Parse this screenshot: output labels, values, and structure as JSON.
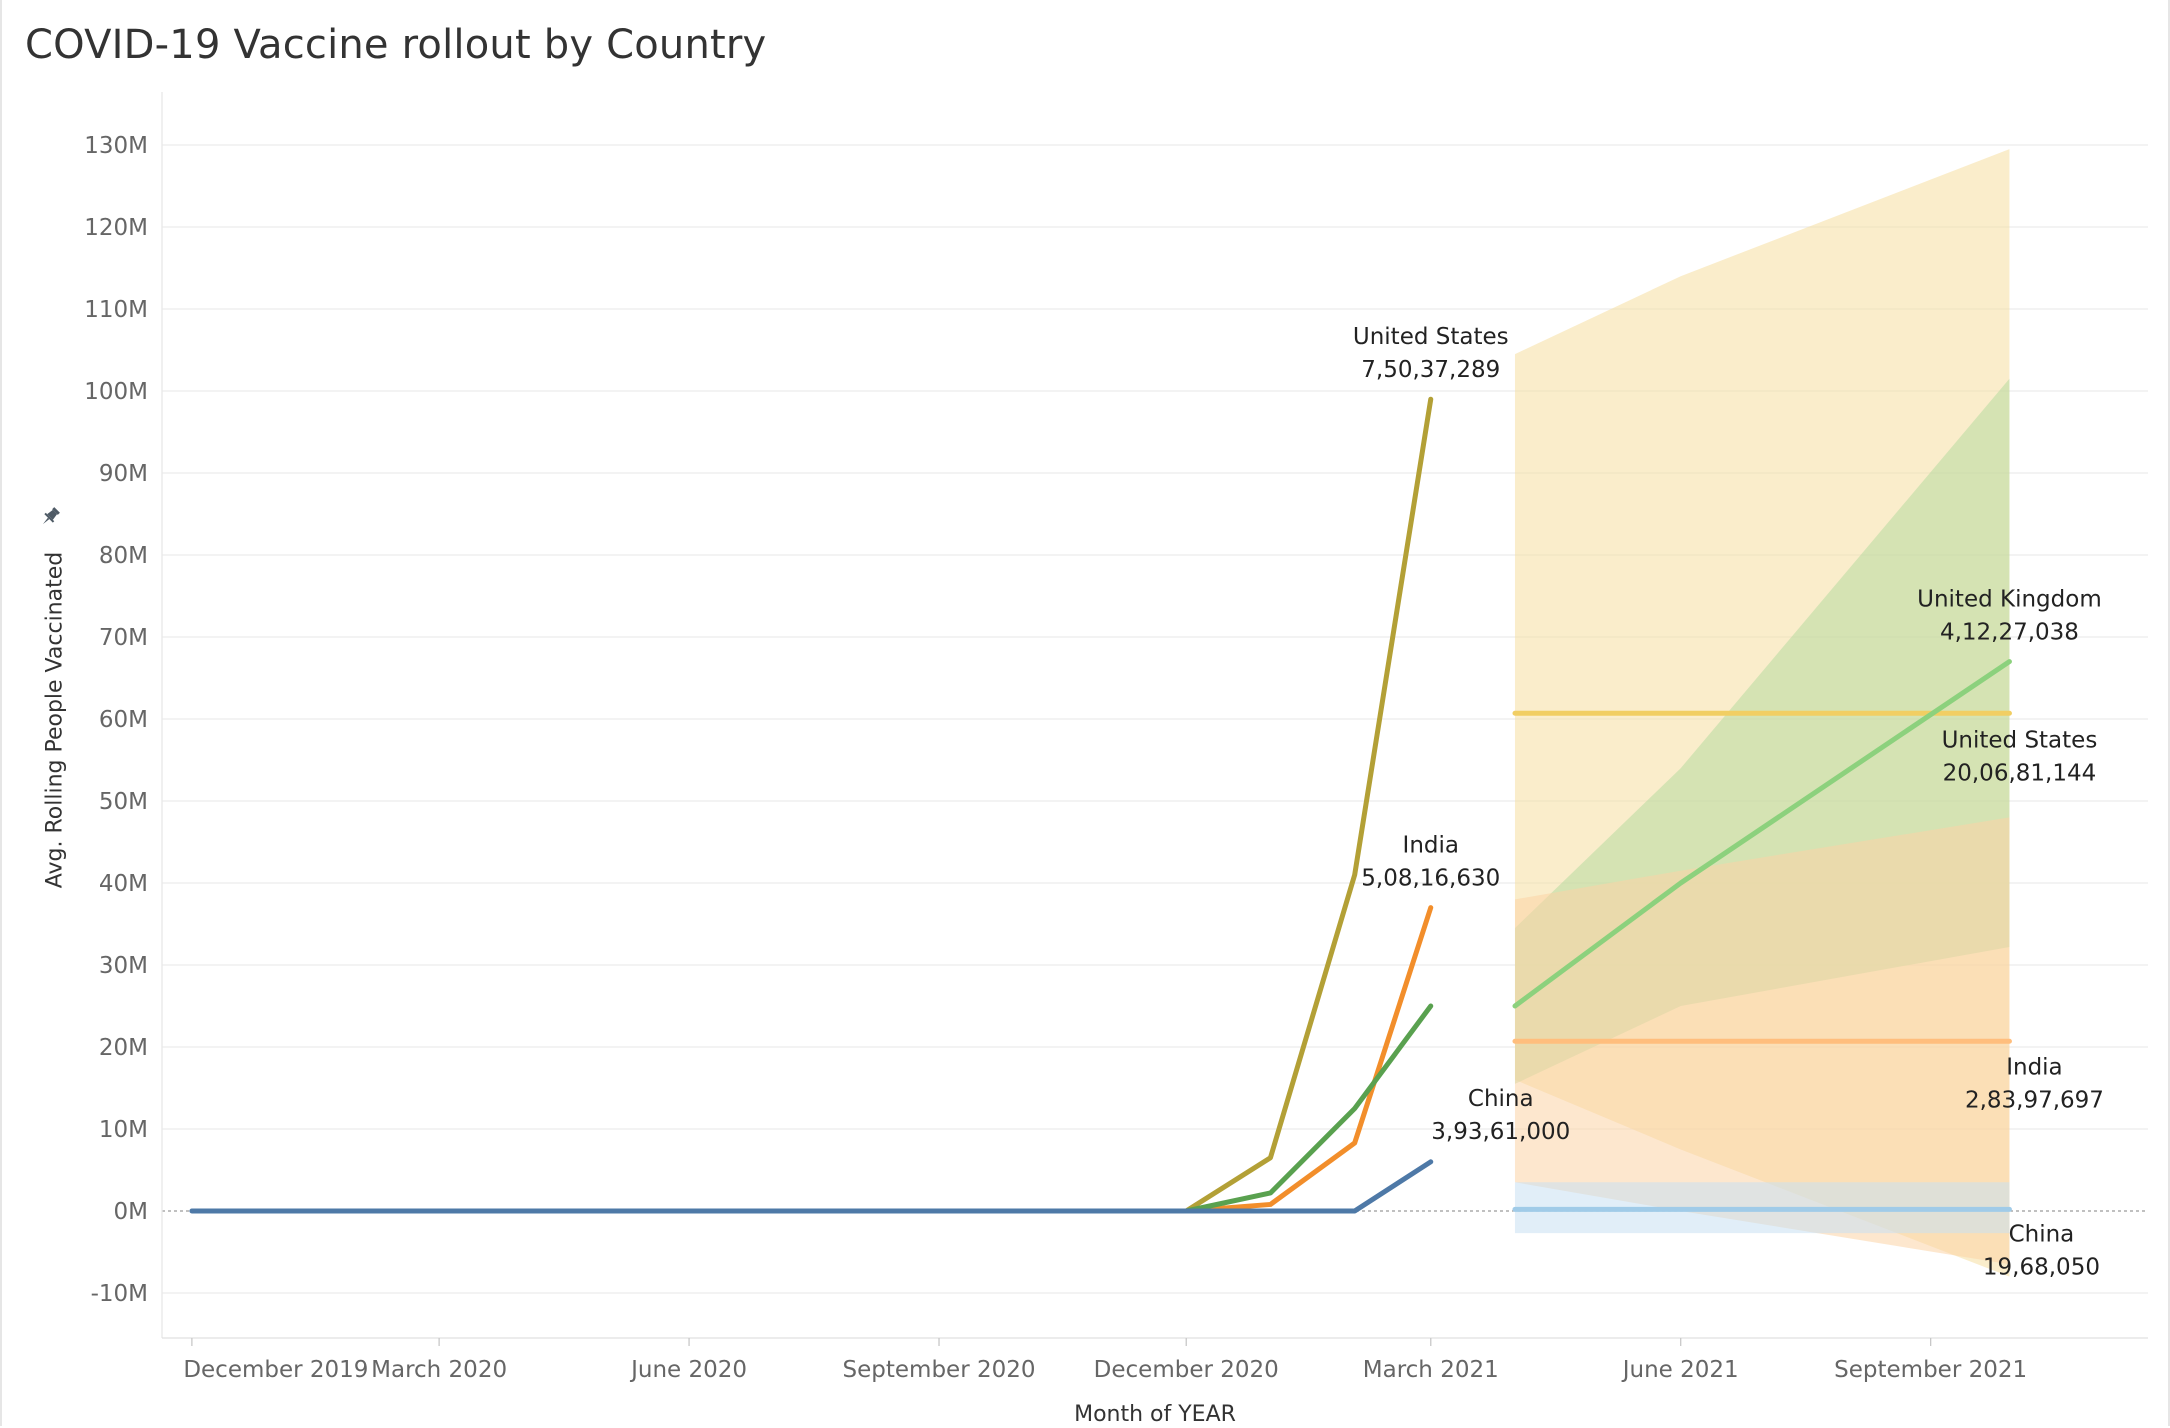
{
  "chart_data": {
    "type": "line",
    "title": "COVID-19 Vaccine rollout by Country",
    "xlabel": "Month of YEAR",
    "ylabel": "Avg. Rolling People Vaccinated",
    "y_axis": {
      "min": -10000000,
      "max": 130000000,
      "ticks": [
        -10000000,
        0,
        10000000,
        20000000,
        30000000,
        40000000,
        50000000,
        60000000,
        70000000,
        80000000,
        90000000,
        100000000,
        110000000,
        120000000,
        130000000
      ],
      "tick_labels": [
        "-10M",
        "0M",
        "10M",
        "20M",
        "30M",
        "40M",
        "50M",
        "60M",
        "70M",
        "80M",
        "90M",
        "100M",
        "110M",
        "120M",
        "130M"
      ]
    },
    "x_axis": {
      "min": "2019-11-20",
      "max": "2021-11-20",
      "ticks": [
        "2019-12-01",
        "2020-03-01",
        "2020-06-01",
        "2020-09-01",
        "2020-12-01",
        "2021-03-01",
        "2021-06-01",
        "2021-09-01"
      ],
      "tick_labels": [
        "December 2019",
        "March 2020",
        "June 2020",
        "September 2020",
        "December 2020",
        "March 2021",
        "June 2021",
        "September 2021"
      ]
    },
    "grid": true,
    "series": [
      {
        "name": "United States",
        "color": "#b3a036",
        "x": [
          "2020-12-01",
          "2021-01-01",
          "2021-02-01",
          "2021-03-01"
        ],
        "y": [
          0,
          6500000,
          41000000,
          99000000
        ]
      },
      {
        "name": "India",
        "color": "#f28e2b",
        "x": [
          "2020-12-01",
          "2021-01-01",
          "2021-02-01",
          "2021-03-01"
        ],
        "y": [
          0,
          800000,
          8300000,
          37000000
        ]
      },
      {
        "name": "United Kingdom",
        "color": "#59a14f",
        "x": [
          "2020-12-01",
          "2021-01-01",
          "2021-02-01",
          "2021-03-01"
        ],
        "y": [
          0,
          2200000,
          12500000,
          25000000
        ]
      },
      {
        "name": "China",
        "color": "#4e79a7",
        "x": [
          "2019-12-01",
          "2020-12-01",
          "2021-01-01",
          "2021-02-01",
          "2021-03-01"
        ],
        "y": [
          0,
          0,
          0,
          0,
          6000000
        ]
      }
    ],
    "forecasts": [
      {
        "name": "United States",
        "color": "#f1ce63",
        "band_color": "#f6dfa0",
        "x": [
          "2021-04-01",
          "2021-06-01",
          "2021-09-30"
        ],
        "y": [
          60700000,
          60700000,
          60700000
        ],
        "upper": [
          104500000,
          114000000,
          129500000
        ],
        "lower": [
          16000000,
          7500000,
          -8000000
        ]
      },
      {
        "name": "United Kingdom",
        "color": "#8cd17d",
        "band_color": "#b6dba0",
        "x": [
          "2021-04-01",
          "2021-06-01",
          "2021-09-30"
        ],
        "y": [
          25000000,
          40000000,
          67000000
        ],
        "upper": [
          34500000,
          54000000,
          101500000
        ],
        "lower": [
          15500000,
          25000000,
          32200000
        ]
      },
      {
        "name": "India",
        "color": "#ffbe7d",
        "band_color": "#fcd3a6",
        "x": [
          "2021-04-01",
          "2021-06-01",
          "2021-09-30"
        ],
        "y": [
          20700000,
          20700000,
          20700000
        ],
        "upper": [
          38000000,
          41500000,
          48000000
        ],
        "lower": [
          3500000,
          0,
          -6500000
        ]
      },
      {
        "name": "China",
        "color": "#a0cbe8",
        "band_color": "#c9e0f2",
        "x": [
          "2021-04-01",
          "2021-06-01",
          "2021-09-30"
        ],
        "y": [
          200000,
          200000,
          200000
        ],
        "upper": [
          3500000,
          3500000,
          3500000
        ],
        "lower": [
          -2700000,
          -2700000,
          -2700000
        ]
      }
    ],
    "annotations": [
      {
        "series": "United States",
        "name": "United States",
        "value": "7,50,37,289",
        "at_x": "2021-03-01",
        "at_y": 99000000,
        "pos": "above"
      },
      {
        "series": "India",
        "name": "India",
        "value": "5,08,16,630",
        "at_x": "2021-03-01",
        "at_y": 37000000,
        "pos": "above"
      },
      {
        "series": "China",
        "name": "China",
        "value": "3,93,61,000",
        "at_x": "2021-03-01",
        "at_y": 6000000,
        "pos": "above-right"
      },
      {
        "series": "United Kingdom forecast",
        "name": "United Kingdom",
        "value": "4,12,27,038",
        "at_x": "2021-09-30",
        "at_y": 67000000,
        "pos": "above"
      },
      {
        "series": "United States forecast",
        "name": "United States",
        "value": "20,06,81,144",
        "at_x": "2021-09-30",
        "at_y": 60700000,
        "pos": "below"
      },
      {
        "series": "India forecast",
        "name": "India",
        "value": "2,83,97,697",
        "at_x": "2021-09-30",
        "at_y": 20700000,
        "pos": "below"
      },
      {
        "series": "China forecast",
        "name": "China",
        "value": "19,68,050",
        "at_x": "2021-09-30",
        "at_y": 200000,
        "pos": "below"
      }
    ]
  }
}
